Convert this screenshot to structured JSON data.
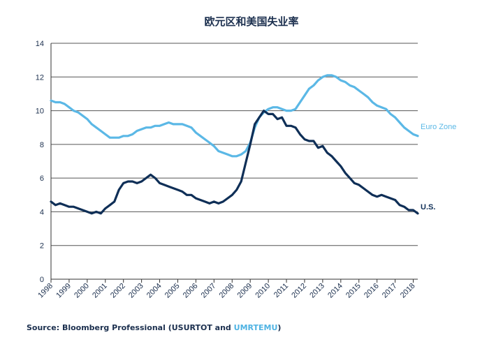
{
  "chart_data": {
    "type": "line",
    "title": "欧元区和美国失业率",
    "xlabel": "",
    "ylabel": "",
    "xlim": [
      1998,
      2018.25
    ],
    "ylim": [
      0,
      14
    ],
    "yticks": [
      0,
      2,
      4,
      6,
      8,
      10,
      12,
      14
    ],
    "xticks": [
      "1998",
      "1999",
      "2000",
      "2001",
      "2002",
      "2003",
      "2004",
      "2005",
      "2006",
      "2007",
      "2008",
      "2009",
      "2010",
      "2011",
      "2012",
      "2013",
      "2014",
      "2015",
      "2016",
      "2017",
      "2018"
    ],
    "grid": true,
    "legend": "series labels at right end of lines",
    "series": [
      {
        "name": "Euro Zone",
        "color": "#5bb8e6",
        "points": [
          [
            1998.0,
            10.6
          ],
          [
            1998.25,
            10.5
          ],
          [
            1998.5,
            10.5
          ],
          [
            1998.75,
            10.4
          ],
          [
            1999.0,
            10.2
          ],
          [
            1999.25,
            10.0
          ],
          [
            1999.5,
            9.9
          ],
          [
            1999.75,
            9.7
          ],
          [
            2000.0,
            9.5
          ],
          [
            2000.25,
            9.2
          ],
          [
            2000.5,
            9.0
          ],
          [
            2000.75,
            8.8
          ],
          [
            2001.0,
            8.6
          ],
          [
            2001.25,
            8.4
          ],
          [
            2001.5,
            8.4
          ],
          [
            2001.75,
            8.4
          ],
          [
            2002.0,
            8.5
          ],
          [
            2002.25,
            8.5
          ],
          [
            2002.5,
            8.6
          ],
          [
            2002.75,
            8.8
          ],
          [
            2003.0,
            8.9
          ],
          [
            2003.25,
            9.0
          ],
          [
            2003.5,
            9.0
          ],
          [
            2003.75,
            9.1
          ],
          [
            2004.0,
            9.1
          ],
          [
            2004.25,
            9.2
          ],
          [
            2004.5,
            9.3
          ],
          [
            2004.75,
            9.2
          ],
          [
            2005.0,
            9.2
          ],
          [
            2005.25,
            9.2
          ],
          [
            2005.5,
            9.1
          ],
          [
            2005.75,
            9.0
          ],
          [
            2006.0,
            8.7
          ],
          [
            2006.25,
            8.5
          ],
          [
            2006.5,
            8.3
          ],
          [
            2006.75,
            8.1
          ],
          [
            2007.0,
            7.9
          ],
          [
            2007.25,
            7.6
          ],
          [
            2007.5,
            7.5
          ],
          [
            2007.75,
            7.4
          ],
          [
            2008.0,
            7.3
          ],
          [
            2008.25,
            7.3
          ],
          [
            2008.5,
            7.4
          ],
          [
            2008.75,
            7.6
          ],
          [
            2009.0,
            8.1
          ],
          [
            2009.25,
            9.0
          ],
          [
            2009.5,
            9.6
          ],
          [
            2009.75,
            9.9
          ],
          [
            2010.0,
            10.1
          ],
          [
            2010.25,
            10.2
          ],
          [
            2010.5,
            10.2
          ],
          [
            2010.75,
            10.1
          ],
          [
            2011.0,
            10.0
          ],
          [
            2011.25,
            10.0
          ],
          [
            2011.5,
            10.1
          ],
          [
            2011.75,
            10.5
          ],
          [
            2012.0,
            10.9
          ],
          [
            2012.25,
            11.3
          ],
          [
            2012.5,
            11.5
          ],
          [
            2012.75,
            11.8
          ],
          [
            2013.0,
            12.0
          ],
          [
            2013.25,
            12.1
          ],
          [
            2013.5,
            12.1
          ],
          [
            2013.75,
            12.0
          ],
          [
            2014.0,
            11.8
          ],
          [
            2014.25,
            11.7
          ],
          [
            2014.5,
            11.5
          ],
          [
            2014.75,
            11.4
          ],
          [
            2015.0,
            11.2
          ],
          [
            2015.25,
            11.0
          ],
          [
            2015.5,
            10.8
          ],
          [
            2015.75,
            10.5
          ],
          [
            2016.0,
            10.3
          ],
          [
            2016.25,
            10.2
          ],
          [
            2016.5,
            10.1
          ],
          [
            2016.75,
            9.8
          ],
          [
            2017.0,
            9.6
          ],
          [
            2017.25,
            9.3
          ],
          [
            2017.5,
            9.0
          ],
          [
            2017.75,
            8.8
          ],
          [
            2018.0,
            8.6
          ],
          [
            2018.25,
            8.5
          ]
        ]
      },
      {
        "name": "U.S.",
        "color": "#0f2f57",
        "points": [
          [
            1998.0,
            4.6
          ],
          [
            1998.25,
            4.4
          ],
          [
            1998.5,
            4.5
          ],
          [
            1998.75,
            4.4
          ],
          [
            1999.0,
            4.3
          ],
          [
            1999.25,
            4.3
          ],
          [
            1999.5,
            4.2
          ],
          [
            1999.75,
            4.1
          ],
          [
            2000.0,
            4.0
          ],
          [
            2000.25,
            3.9
          ],
          [
            2000.5,
            4.0
          ],
          [
            2000.75,
            3.9
          ],
          [
            2001.0,
            4.2
          ],
          [
            2001.25,
            4.4
          ],
          [
            2001.5,
            4.6
          ],
          [
            2001.75,
            5.3
          ],
          [
            2002.0,
            5.7
          ],
          [
            2002.25,
            5.8
          ],
          [
            2002.5,
            5.8
          ],
          [
            2002.75,
            5.7
          ],
          [
            2003.0,
            5.8
          ],
          [
            2003.25,
            6.0
          ],
          [
            2003.5,
            6.2
          ],
          [
            2003.75,
            6.0
          ],
          [
            2004.0,
            5.7
          ],
          [
            2004.25,
            5.6
          ],
          [
            2004.5,
            5.5
          ],
          [
            2004.75,
            5.4
          ],
          [
            2005.0,
            5.3
          ],
          [
            2005.25,
            5.2
          ],
          [
            2005.5,
            5.0
          ],
          [
            2005.75,
            5.0
          ],
          [
            2006.0,
            4.8
          ],
          [
            2006.25,
            4.7
          ],
          [
            2006.5,
            4.6
          ],
          [
            2006.75,
            4.5
          ],
          [
            2007.0,
            4.6
          ],
          [
            2007.25,
            4.5
          ],
          [
            2007.5,
            4.6
          ],
          [
            2007.75,
            4.8
          ],
          [
            2008.0,
            5.0
          ],
          [
            2008.25,
            5.3
          ],
          [
            2008.5,
            5.8
          ],
          [
            2008.75,
            6.9
          ],
          [
            2009.0,
            8.0
          ],
          [
            2009.25,
            9.2
          ],
          [
            2009.5,
            9.6
          ],
          [
            2009.75,
            10.0
          ],
          [
            2010.0,
            9.8
          ],
          [
            2010.25,
            9.8
          ],
          [
            2010.5,
            9.5
          ],
          [
            2010.75,
            9.6
          ],
          [
            2011.0,
            9.1
          ],
          [
            2011.25,
            9.1
          ],
          [
            2011.5,
            9.0
          ],
          [
            2011.75,
            8.6
          ],
          [
            2012.0,
            8.3
          ],
          [
            2012.25,
            8.2
          ],
          [
            2012.5,
            8.2
          ],
          [
            2012.75,
            7.8
          ],
          [
            2013.0,
            7.9
          ],
          [
            2013.25,
            7.5
          ],
          [
            2013.5,
            7.3
          ],
          [
            2013.75,
            7.0
          ],
          [
            2014.0,
            6.7
          ],
          [
            2014.25,
            6.3
          ],
          [
            2014.5,
            6.0
          ],
          [
            2014.75,
            5.7
          ],
          [
            2015.0,
            5.6
          ],
          [
            2015.25,
            5.4
          ],
          [
            2015.5,
            5.2
          ],
          [
            2015.75,
            5.0
          ],
          [
            2016.0,
            4.9
          ],
          [
            2016.25,
            5.0
          ],
          [
            2016.5,
            4.9
          ],
          [
            2016.75,
            4.8
          ],
          [
            2017.0,
            4.7
          ],
          [
            2017.25,
            4.4
          ],
          [
            2017.5,
            4.3
          ],
          [
            2017.75,
            4.1
          ],
          [
            2018.0,
            4.1
          ],
          [
            2018.25,
            3.9
          ]
        ]
      }
    ]
  },
  "source": {
    "prefix": "Source: Bloomberg Professional (USURTOT and ",
    "accent": "UMRTEMU",
    "suffix": ")"
  }
}
